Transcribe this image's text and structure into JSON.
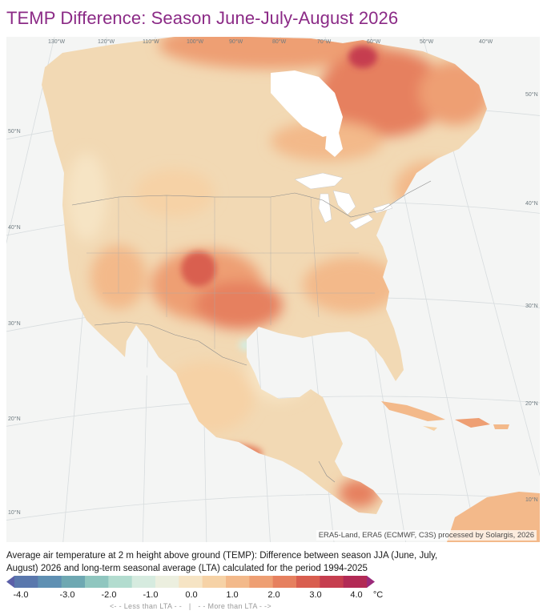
{
  "title": "TEMP Difference: Season June-July-August 2026",
  "map": {
    "latitude_labels_left": [
      "50°N",
      "40°N",
      "30°N",
      "20°N",
      "10°N"
    ],
    "latitude_labels_right": [
      "50°N",
      "40°N",
      "30°N",
      "20°N",
      "10°N"
    ],
    "longitude_labels": [
      "130°W",
      "120°W",
      "110°W",
      "100°W",
      "90°W",
      "80°W",
      "70°W",
      "60°W",
      "50°W",
      "40°W"
    ],
    "attribution": "ERA5-Land, ERA5 (ECMWF, C3S) processed by Solargis, 2026",
    "colors": {
      "ocean": "#f4f5f4",
      "land_base": "#f2d9b4",
      "great_lakes": "#ffffff",
      "borders": "#8c8c8c"
    }
  },
  "description": "Average air temperature at 2 m height above ground (TEMP): Difference between season JJA (June, July, August) 2026 and long-term seasonal average (LTA) calculated for the period 1994-2025",
  "legend": {
    "unit": "°C",
    "tick_labels": [
      "-4.0",
      "-3.0",
      "-2.0",
      "-1.0",
      "0.0",
      "1.0",
      "2.0",
      "3.0",
      "4.0"
    ],
    "less_note": "<- - Less than LTA - -",
    "separator": "|",
    "more_note": "- - More than LTA - ->",
    "colors": [
      "#5b5fa8",
      "#5a78ad",
      "#5f90b3",
      "#6ea8b2",
      "#8fc6bf",
      "#b2dccf",
      "#d6ebdf",
      "#ecefdf",
      "#f6e4c4",
      "#f6d2a6",
      "#f3b98a",
      "#ee9f73",
      "#e6805f",
      "#d95e4f",
      "#c63e4f",
      "#b22a55",
      "#9b2a7a"
    ]
  }
}
